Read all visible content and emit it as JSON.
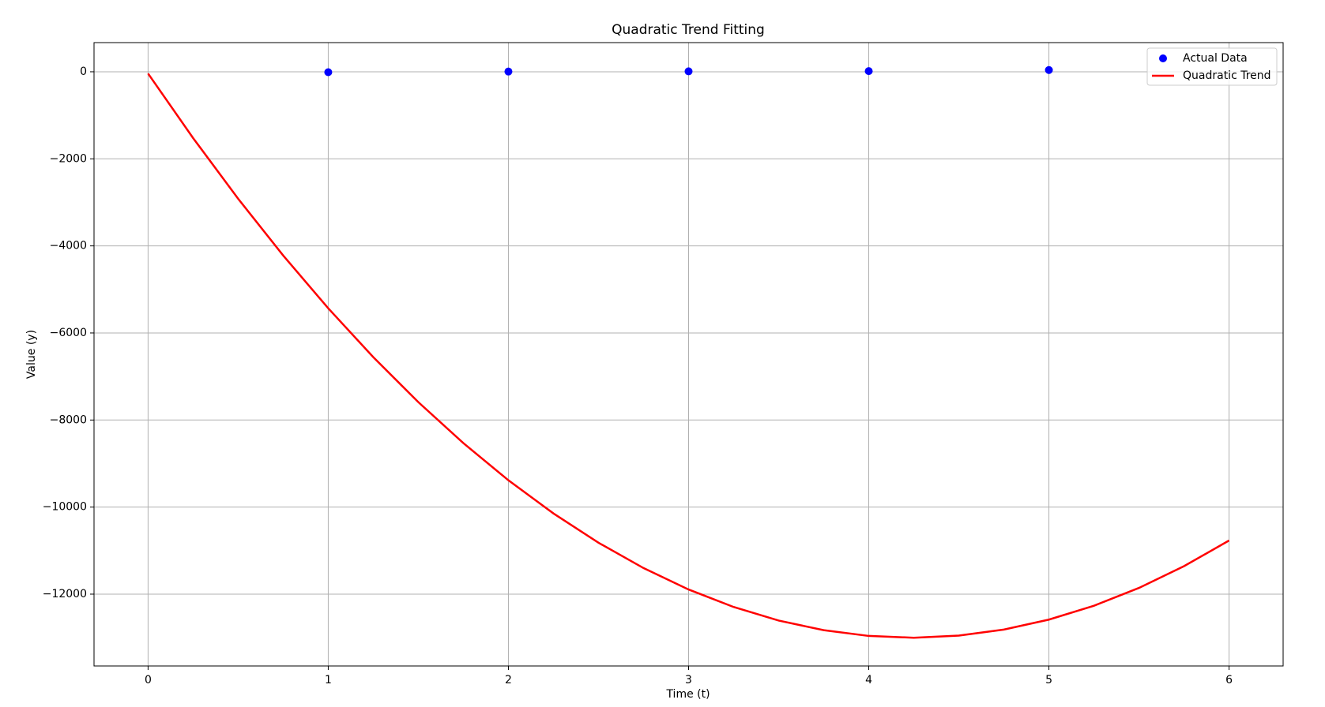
{
  "chart_data": {
    "type": "scatter",
    "title": "Quadratic Trend Fitting",
    "x_label": "Time (t)",
    "y_label": "Value (y)",
    "xlim": [
      -0.3,
      6.3
    ],
    "xticks": [
      0,
      1,
      2,
      3,
      4,
      5,
      6
    ],
    "ylim": [
      -13650,
      670
    ],
    "yticks": [
      0,
      {
        "value": -2000,
        "label": "−2000"
      },
      {
        "value": -4000,
        "label": "−4000"
      },
      {
        "value": -6000,
        "label": "−6000"
      },
      {
        "value": -8000,
        "label": "−8000"
      },
      {
        "value": -10000,
        "label": "−10000"
      },
      {
        "value": -12000,
        "label": "−12000"
      }
    ],
    "grid": true,
    "legend": "upper right",
    "series": [
      {
        "name": "Actual Data",
        "type": "scatter",
        "color": "#0000ff",
        "x": [
          1,
          2,
          3,
          4,
          5
        ],
        "values": [
          -10,
          5,
          10,
          15,
          40
        ]
      },
      {
        "name": "Quadratic Trend",
        "type": "line",
        "color": "#ff0000",
        "x": [
          0,
          0.25,
          0.5,
          0.75,
          1,
          1.25,
          1.5,
          1.75,
          2,
          2.25,
          2.5,
          2.75,
          3,
          3.25,
          3.5,
          3.75,
          4,
          4.25,
          4.5,
          4.75,
          5,
          5.25,
          5.5,
          5.75,
          6
        ],
        "values": [
          -40,
          -1523,
          -2917,
          -4220,
          -5433,
          -6556,
          -7589,
          -8531,
          -9384,
          -10146,
          -10819,
          -11401,
          -11893,
          -12295,
          -12607,
          -12828,
          -12960,
          -13001,
          -12953,
          -12814,
          -12585,
          -12266,
          -11857,
          -11357,
          -10768
        ]
      }
    ]
  }
}
